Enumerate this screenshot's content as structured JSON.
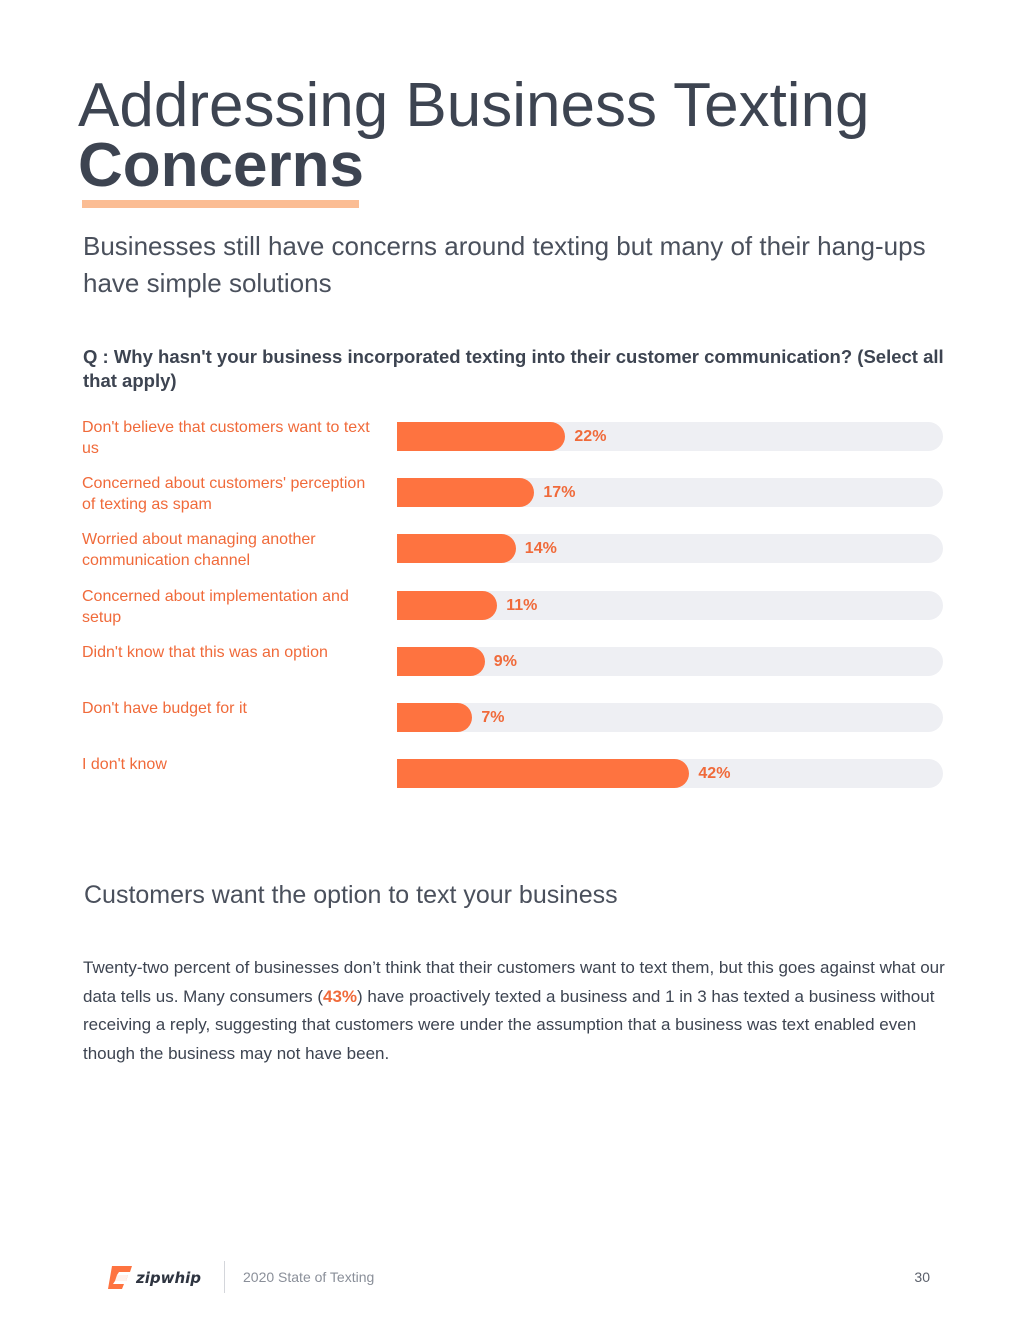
{
  "title": {
    "line1": "Addressing Business Texting",
    "line2": "Concerns"
  },
  "subtitle": "Businesses still have concerns around texting but many of their hang-ups have simple solutions",
  "question": "Q : Why hasn't your business incorporated texting into their customer communication? (Select all that apply)",
  "chart_data": {
    "type": "bar",
    "orientation": "horizontal",
    "title": "Q : Why hasn't your business incorporated texting into their customer communication? (Select all that apply)",
    "categories": [
      "Don't believe that customers want to text us",
      "Concerned about customers' perception of texting as spam",
      "Worried about managing another communication channel",
      "Concerned about implementation and setup",
      "Didn't know that this was an option",
      "Don't have budget for it",
      "I don't know"
    ],
    "values": [
      22,
      17,
      14,
      11,
      9,
      7,
      42
    ],
    "value_labels": [
      "22%",
      "17%",
      "14%",
      "11%",
      "9%",
      "7%",
      "42%"
    ],
    "xlim": [
      0,
      100
    ],
    "unit": "%",
    "colors": {
      "fill": "#fe7340",
      "track": "#eeeff3",
      "label": "#f06a3a"
    }
  },
  "section": {
    "heading": "Customers want the option to text your business",
    "para_before": "Twenty-two percent of businesses don’t think that their customers want to text them, but this goes against what our data tells us. Many consumers (",
    "para_highlight": "43%",
    "para_after": ") have proactively texted a business and 1 in 3 has texted a business without receiving a reply, suggesting that customers were under the assumption that a business was text enabled even though the business may not have been."
  },
  "footer": {
    "logo_text": "zipwhip",
    "report_name": "2020 State of Texting",
    "page_number": "30"
  },
  "colors": {
    "accent": "#fe7340",
    "accent_text": "#f06a3a",
    "underline": "#fbbd94",
    "heading": "#3d4451"
  }
}
